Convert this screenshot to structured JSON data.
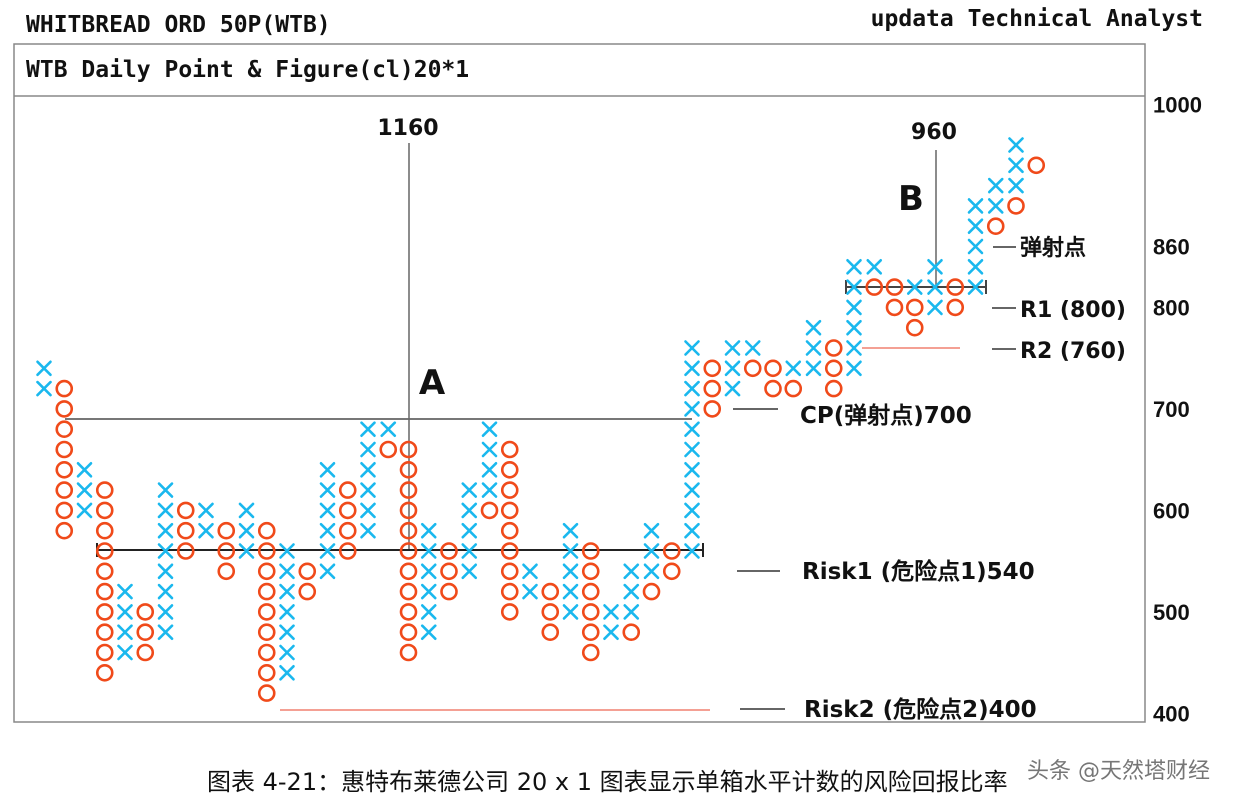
{
  "header": {
    "security": "WHITBREAD ORD 50P(WTB)",
    "vendor": "updata Technical Analyst",
    "chart_title": "WTB Daily Point & Figure(cl)20*1"
  },
  "caption": "图表 4-21：惠特布莱德公司 20 x 1 图表显示单箱水平计数的风险回报比率",
  "watermark": "头条 @天然塔财经",
  "colors": {
    "x_mark": "#1ab8ee",
    "o_mark": "#f04a1a",
    "ref_line": "#f08070"
  },
  "annotations": {
    "count_a_value": "1160",
    "count_a_label": "A",
    "count_b_value": "960",
    "count_b_label": "B",
    "launch_point": "弹射点",
    "r1": "R1 (800)",
    "r2": "R2 (760)",
    "cp": "CP(弹射点)700",
    "risk1": "Risk1 (危险点1)540",
    "risk2": "Risk2 (危险点2)400"
  },
  "chart_data": {
    "type": "point-and-figure",
    "title": "WTB Daily Point & Figure(cl)20*1",
    "box_size": 20,
    "reversal": 1,
    "ylim": [
      400,
      1000
    ],
    "yticks": [
      "1000",
      "860",
      "800",
      "700",
      "600",
      "500",
      "400"
    ],
    "ytick_values": [
      1000,
      860,
      800,
      700,
      600,
      500,
      400
    ],
    "columns": [
      [
        [
          "X",
          740,
          720
        ]
      ],
      [
        [
          "O",
          720,
          580
        ]
      ],
      [
        [
          "X",
          640,
          600
        ]
      ],
      [
        [
          "O",
          620,
          440
        ]
      ],
      [
        [
          "X",
          520,
          460
        ]
      ],
      [
        [
          "O",
          500,
          460
        ]
      ],
      [
        [
          "X",
          620,
          480
        ]
      ],
      [
        [
          "O",
          600,
          560
        ]
      ],
      [
        [
          "X",
          600,
          580
        ]
      ],
      [
        [
          "O",
          580,
          540
        ]
      ],
      [
        [
          "X",
          600,
          560
        ]
      ],
      [
        [
          "O",
          580,
          420
        ]
      ],
      [
        [
          "X",
          560,
          440
        ]
      ],
      [
        [
          "O",
          540,
          520
        ]
      ],
      [
        [
          "X",
          640,
          540
        ]
      ],
      [
        [
          "O",
          620,
          560
        ]
      ],
      [
        [
          "X",
          680,
          580
        ]
      ],
      [
        [
          "X",
          680,
          680
        ],
        [
          "O",
          660,
          660
        ]
      ],
      [
        [
          "O",
          660,
          460
        ]
      ],
      [
        [
          "X",
          580,
          480
        ]
      ],
      [
        [
          "O",
          560,
          520
        ]
      ],
      [
        [
          "X",
          620,
          540
        ]
      ],
      [
        [
          "X",
          680,
          620
        ],
        [
          "O",
          600,
          600
        ]
      ],
      [
        [
          "O",
          660,
          500
        ]
      ],
      [
        [
          "X",
          540,
          520
        ]
      ],
      [
        [
          "O",
          520,
          480
        ]
      ],
      [
        [
          "X",
          580,
          500
        ]
      ],
      [
        [
          "O",
          560,
          460
        ]
      ],
      [
        [
          "X",
          500,
          480
        ]
      ],
      [
        [
          "X",
          540,
          500
        ],
        [
          "O",
          480,
          480
        ]
      ],
      [
        [
          "X",
          580,
          540
        ],
        [
          "O",
          520,
          520
        ]
      ],
      [
        [
          "O",
          560,
          540
        ]
      ],
      [
        [
          "X",
          760,
          560
        ]
      ],
      [
        [
          "O",
          740,
          700
        ]
      ],
      [
        [
          "X",
          760,
          720
        ]
      ],
      [
        [
          "X",
          760,
          760
        ],
        [
          "O",
          740,
          740
        ]
      ],
      [
        [
          "O",
          740,
          720
        ]
      ],
      [
        [
          "X",
          740,
          740
        ],
        [
          "O",
          720,
          720
        ]
      ],
      [
        [
          "X",
          780,
          740
        ]
      ],
      [
        [
          "O",
          760,
          720
        ]
      ],
      [
        [
          "X",
          840,
          740
        ]
      ],
      [
        [
          "X",
          840,
          840
        ],
        [
          "O",
          820,
          820
        ]
      ],
      [
        [
          "O",
          820,
          800
        ]
      ],
      [
        [
          "X",
          820,
          820
        ],
        [
          "O",
          800,
          780
        ]
      ],
      [
        [
          "X",
          840,
          800
        ]
      ],
      [
        [
          "O",
          820,
          800
        ]
      ],
      [
        [
          "X",
          900,
          820
        ]
      ],
      [
        [
          "X",
          920,
          900
        ],
        [
          "O",
          880,
          880
        ]
      ],
      [
        [
          "X",
          960,
          920
        ],
        [
          "O",
          900,
          900
        ]
      ],
      [
        [
          "O",
          940,
          940
        ]
      ]
    ]
  }
}
